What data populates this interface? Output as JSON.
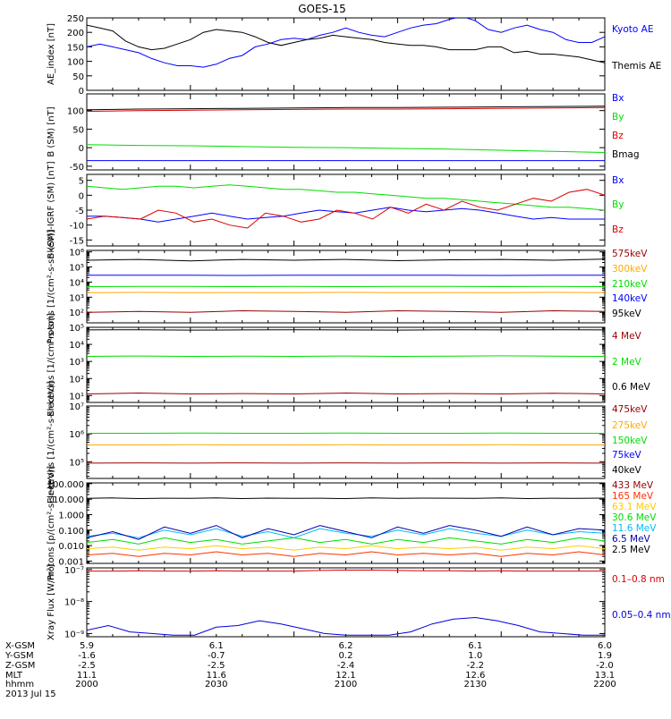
{
  "title": "GOES-15",
  "chart_data": [
    {
      "type": "line",
      "ylabel": "AE_index [nT]",
      "yscale": "linear",
      "ylim": [
        0,
        250
      ],
      "ticks": [
        {
          "v": 0,
          "label": "0"
        },
        {
          "v": 50,
          "label": "50"
        },
        {
          "v": 100,
          "label": "100"
        },
        {
          "v": 150,
          "label": "150"
        },
        {
          "v": 200,
          "label": "200"
        },
        {
          "v": 250,
          "label": "250"
        }
      ],
      "series": [
        {
          "name": "Kyoto AE",
          "color": "#0000ff",
          "values": [
            150,
            160,
            150,
            140,
            130,
            110,
            95,
            85,
            85,
            80,
            90,
            110,
            120,
            150,
            160,
            175,
            180,
            175,
            190,
            200,
            215,
            200,
            190,
            185,
            200,
            215,
            225,
            230,
            245,
            255,
            240,
            210,
            200,
            215,
            225,
            210,
            200,
            175,
            165,
            165,
            185
          ]
        },
        {
          "name": "Themis AE",
          "color": "#000000",
          "values": [
            225,
            215,
            205,
            170,
            150,
            140,
            145,
            160,
            175,
            200,
            210,
            205,
            200,
            185,
            165,
            155,
            165,
            175,
            180,
            190,
            185,
            180,
            175,
            165,
            160,
            155,
            155,
            150,
            140,
            140,
            140,
            150,
            150,
            130,
            135,
            125,
            125,
            120,
            115,
            105,
            95
          ]
        }
      ]
    },
    {
      "type": "line",
      "ylabel": "B (SM) [nT]",
      "yscale": "linear",
      "ylim": [
        -60,
        145
      ],
      "ticks": [
        {
          "v": -50,
          "label": "-50"
        },
        {
          "v": 0,
          "label": "0"
        },
        {
          "v": 50,
          "label": "50"
        },
        {
          "v": 100,
          "label": "100"
        },
        {
          "v": 150,
          "label": "150"
        }
      ],
      "series": [
        {
          "name": "Bx",
          "color": "#0000ff",
          "values": [
            -35,
            -35,
            -35,
            -35,
            -35,
            -35,
            -35,
            -35,
            -35,
            -35,
            -35
          ]
        },
        {
          "name": "By",
          "color": "#00dd00",
          "values": [
            8,
            6,
            5,
            3,
            1,
            0,
            -2,
            -4,
            -7,
            -10,
            -13
          ]
        },
        {
          "name": "Bz",
          "color": "#dd0000",
          "values": [
            98,
            100,
            101,
            102,
            103,
            104,
            104,
            105,
            106,
            107,
            108
          ]
        },
        {
          "name": "Bmag",
          "color": "#000000",
          "values": [
            102,
            104,
            105,
            106,
            107,
            108,
            108,
            109,
            110,
            111,
            112
          ]
        }
      ]
    },
    {
      "type": "line",
      "ylabel": "B (SM)-IGRF (SM) [nT]",
      "yscale": "linear",
      "ylim": [
        -17,
        7
      ],
      "ticks": [
        {
          "v": -15,
          "label": "-15"
        },
        {
          "v": -10,
          "label": "-10"
        },
        {
          "v": -5,
          "label": "-5"
        },
        {
          "v": 0,
          "label": "0"
        },
        {
          "v": 5,
          "label": "5"
        }
      ],
      "series": [
        {
          "name": "Bx",
          "color": "#0000ff",
          "values": [
            -7,
            -7,
            -7.5,
            -8,
            -9,
            -8,
            -7,
            -6,
            -7,
            -8,
            -7.5,
            -7,
            -6,
            -5,
            -5.5,
            -6,
            -5,
            -4,
            -5,
            -5.5,
            -5,
            -4.5,
            -5,
            -6,
            -7,
            -8,
            -7.5,
            -8,
            -8,
            -8
          ]
        },
        {
          "name": "By",
          "color": "#00dd00",
          "values": [
            3,
            2.5,
            2,
            2.5,
            3,
            3,
            2.5,
            3,
            3.5,
            3,
            2.5,
            2,
            2,
            1.5,
            1,
            1,
            0.5,
            0,
            -0.5,
            -1,
            -1,
            -1.5,
            -2,
            -2.5,
            -3,
            -3.5,
            -4,
            -4,
            -4.5,
            -5
          ]
        },
        {
          "name": "Bz",
          "color": "#dd0000",
          "values": [
            -8,
            -7,
            -7.5,
            -8,
            -5,
            -6,
            -9,
            -8,
            -10,
            -11,
            -6,
            -7,
            -9,
            -8,
            -5,
            -6,
            -8,
            -4,
            -6,
            -3,
            -5,
            -2,
            -4,
            -5,
            -3,
            -1,
            -2,
            1,
            2,
            0
          ]
        }
      ]
    },
    {
      "type": "line",
      "ylabel": "Protons [1/(cm²-s-sr-keV)]",
      "yscale": "log",
      "ylim": [
        1.3,
        6.1
      ],
      "ticks": [
        {
          "v": 2,
          "label": "10²"
        },
        {
          "v": 3,
          "label": "10³"
        },
        {
          "v": 4,
          "label": "10⁴"
        },
        {
          "v": 5,
          "label": "10⁵"
        },
        {
          "v": 6,
          "label": "10⁶"
        }
      ],
      "series": [
        {
          "name": "575keV",
          "color": "#990000",
          "values": [
            2.0,
            2.05,
            2.0,
            2.1,
            2.05,
            2.0,
            2.1,
            2.05,
            2.0,
            2.1,
            2.05
          ]
        },
        {
          "name": "300keV",
          "color": "#ffaa00",
          "values": [
            3.3,
            3.32,
            3.3,
            3.31,
            3.3,
            3.32,
            3.3,
            3.31,
            3.3,
            3.32,
            3.3
          ]
        },
        {
          "name": "210keV",
          "color": "#00dd00",
          "values": [
            3.7,
            3.72,
            3.71,
            3.7,
            3.72,
            3.7,
            3.71,
            3.72,
            3.7,
            3.71,
            3.7
          ]
        },
        {
          "name": "140keV",
          "color": "#0000ff",
          "values": [
            4.45,
            4.46,
            4.45,
            4.44,
            4.46,
            4.45,
            4.46,
            4.45,
            4.44,
            4.46,
            4.45
          ]
        },
        {
          "name": "95keV",
          "color": "#000000",
          "values": [
            5.45,
            5.5,
            5.4,
            5.5,
            5.45,
            5.5,
            5.42,
            5.48,
            5.5,
            5.45,
            5.52
          ]
        }
      ]
    },
    {
      "type": "line",
      "ylabel": "Electrons [1/(cm²-s-sr)]",
      "yscale": "log",
      "ylim": [
        0.6,
        5.0
      ],
      "ticks": [
        {
          "v": 1,
          "label": "10¹"
        },
        {
          "v": 2,
          "label": "10²"
        },
        {
          "v": 3,
          "label": "10³"
        },
        {
          "v": 4,
          "label": "10⁴"
        },
        {
          "v": 5,
          "label": "10⁵"
        }
      ],
      "series": [
        {
          "name": "4 MeV",
          "color": "#990000",
          "values": [
            1.1,
            1.15,
            1.1,
            1.12,
            1.1,
            1.15,
            1.1,
            1.12,
            1.1,
            1.14,
            1.1
          ]
        },
        {
          "name": "2 MeV",
          "color": "#00dd00",
          "values": [
            3.3,
            3.32,
            3.3,
            3.31,
            3.3,
            3.32,
            3.3,
            3.31,
            3.33,
            3.31,
            3.3
          ]
        },
        {
          "name": "0.6 MeV",
          "color": "#000000",
          "values": [
            4.85,
            4.86,
            4.84,
            4.85,
            4.86,
            4.85,
            4.84,
            4.86,
            4.85,
            4.86,
            4.85
          ]
        }
      ]
    },
    {
      "type": "line",
      "ylabel": "Electrons [1/(cm²-s-sr-keV)]",
      "yscale": "log",
      "ylim": [
        4.4,
        7.0
      ],
      "ticks": [
        {
          "v": 5,
          "label": "10⁵"
        },
        {
          "v": 6,
          "label": "10⁶"
        },
        {
          "v": 7,
          "label": "10⁷"
        }
      ],
      "series": [
        {
          "name": "475keV",
          "color": "#990000",
          "values": [
            4.95,
            4.96,
            4.95,
            4.96,
            4.95,
            4.96,
            4.95,
            4.96,
            4.95,
            4.96,
            4.95
          ]
        },
        {
          "name": "275keV",
          "color": "#ffaa00",
          "values": [
            5.6,
            5.6,
            5.61,
            5.6,
            5.6,
            5.61,
            5.6,
            5.6,
            5.61,
            5.6,
            5.6
          ]
        },
        {
          "name": "150keV",
          "color": "#00dd00",
          "values": [
            6.02,
            6.02,
            6.03,
            6.02,
            6.02,
            6.03,
            6.02,
            6.02,
            6.03,
            6.02,
            6.02
          ]
        },
        {
          "name": "75keV",
          "color": "#0000ff",
          "values": []
        },
        {
          "name": "40keV",
          "color": "#000000",
          "values": []
        }
      ]
    },
    {
      "type": "line",
      "ylabel": "Protons [p/(cm²-s-sr-keV)]",
      "yscale": "log",
      "ylim": [
        -3.15,
        2.05
      ],
      "ticks": [
        {
          "v": -3,
          "label": "0.001"
        },
        {
          "v": -2,
          "label": "0.010"
        },
        {
          "v": -1,
          "label": "0.100"
        },
        {
          "v": 0,
          "label": "1.000"
        },
        {
          "v": 1,
          "label": "10.000"
        },
        {
          "v": 2,
          "label": "100.000"
        }
      ],
      "series": [
        {
          "name": "433 MeV",
          "color": "#990000",
          "values": []
        },
        {
          "name": "165 MeV",
          "color": "#ff3300",
          "values": [
            -2.6,
            -2.5,
            -2.7,
            -2.5,
            -2.6,
            -2.4,
            -2.6,
            -2.5,
            -2.7,
            -2.5,
            -2.6,
            -2.4,
            -2.6,
            -2.5,
            -2.6,
            -2.5,
            -2.7,
            -2.5,
            -2.6,
            -2.4,
            -2.6
          ]
        },
        {
          "name": "63.1 MeV",
          "color": "#ffcc00",
          "values": [
            -2.2,
            -2.1,
            -2.3,
            -2.1,
            -2.2,
            -2.0,
            -2.2,
            -2.1,
            -2.3,
            -2.1,
            -2.2,
            -2.0,
            -2.2,
            -2.1,
            -2.2,
            -2.1,
            -2.3,
            -2.1,
            -2.2,
            -2.0,
            -2.2
          ]
        },
        {
          "name": "30.6 MeV",
          "color": "#00dd00",
          "values": [
            -1.8,
            -1.6,
            -1.9,
            -1.5,
            -1.8,
            -1.6,
            -1.9,
            -1.7,
            -1.5,
            -1.8,
            -1.6,
            -1.9,
            -1.6,
            -1.8,
            -1.5,
            -1.7,
            -1.9,
            -1.6,
            -1.8,
            -1.5,
            -1.7
          ]
        },
        {
          "name": "11.6 MeV",
          "color": "#00bbff",
          "values": [
            -1.4,
            -1.2,
            -1.5,
            -1.0,
            -1.3,
            -0.9,
            -1.4,
            -1.1,
            -1.5,
            -0.9,
            -1.2,
            -1.4,
            -1.0,
            -1.3,
            -0.9,
            -1.2,
            -1.4,
            -1.0,
            -1.3,
            -1.1,
            -1.2
          ]
        },
        {
          "name": "6.5 MeV",
          "color": "#0000aa",
          "values": [
            -1.5,
            -1.1,
            -1.6,
            -0.8,
            -1.2,
            -0.7,
            -1.5,
            -0.9,
            -1.3,
            -0.7,
            -1.1,
            -1.5,
            -0.8,
            -1.2,
            -0.7,
            -1.0,
            -1.4,
            -0.8,
            -1.3,
            -0.9,
            -1.0
          ]
        },
        {
          "name": "2.5 MeV",
          "color": "#000000",
          "values": [
            1.05,
            1.08,
            1.04,
            1.06,
            1.05,
            1.08,
            1.04,
            1.07,
            1.05,
            1.06,
            1.04,
            1.08,
            1.05,
            1.07,
            1.06,
            1.05,
            1.08,
            1.04,
            1.06,
            1.05,
            1.07
          ]
        }
      ]
    },
    {
      "type": "line",
      "ylabel": "Xray Flux [W/m²]",
      "yscale": "log",
      "ylim": [
        -9.1,
        -6.95
      ],
      "ticks": [
        {
          "v": -9,
          "label": "10⁻⁹"
        },
        {
          "v": -8,
          "label": "10⁻⁸"
        },
        {
          "v": -7,
          "label": "10⁻⁷"
        }
      ],
      "series": [
        {
          "name": "0.1–0.8 nm",
          "color": "#dd0000",
          "values": [
            -7.05,
            -7.05,
            -7.04,
            -7.05,
            -7.05,
            -7.04,
            -7.05,
            -7.05,
            -7.05,
            -7.03,
            -7.02,
            -7.02,
            -7.03,
            -7.04,
            -7.04,
            -7.05,
            -7.04,
            -7.05,
            -7.05,
            -7.05,
            -7.05
          ]
        },
        {
          "name": "0.05–0.4 nm",
          "color": "#0000dd",
          "values": [
            -8.9,
            -8.75,
            -8.95,
            -9.0,
            -9.05,
            -9.05,
            -8.8,
            -8.75,
            -8.6,
            -8.7,
            -8.85,
            -9.0,
            -9.05,
            -9.05,
            -9.05,
            -8.95,
            -8.7,
            -8.55,
            -8.5,
            -8.6,
            -8.75,
            -8.95,
            -9.0,
            -9.05,
            -9.05
          ]
        }
      ]
    }
  ],
  "legend_labels": [
    [
      "Kyoto AE",
      "Themis AE"
    ],
    [
      "Bx",
      "By",
      "Bz",
      "Bmag"
    ],
    [
      "Bx",
      "By",
      "Bz"
    ],
    [
      "575keV",
      "300keV",
      "210keV",
      "140keV",
      "95keV"
    ],
    [
      "4 MeV",
      "2 MeV",
      "0.6 MeV"
    ],
    [
      "475keV",
      "275keV",
      "150keV",
      "75keV",
      "40keV"
    ],
    [
      "433 MeV",
      "165 MeV",
      "63.1 MeV",
      "30.6 MeV",
      "11.6 MeV",
      "6.5 MeV",
      "2.5 MeV"
    ],
    [
      "0.1–0.8 nm",
      "0.05–0.4 nm"
    ]
  ],
  "legend_colors": [
    [
      "#0000ff",
      "#000000"
    ],
    [
      "#0000ff",
      "#00dd00",
      "#dd0000",
      "#000000"
    ],
    [
      "#0000ff",
      "#00dd00",
      "#dd0000"
    ],
    [
      "#990000",
      "#ffaa00",
      "#00dd00",
      "#0000ff",
      "#000000"
    ],
    [
      "#990000",
      "#00dd00",
      "#000000"
    ],
    [
      "#990000",
      "#ffaa00",
      "#00dd00",
      "#0000ff",
      "#000000"
    ],
    [
      "#990000",
      "#ff3300",
      "#ffcc00",
      "#00dd00",
      "#00bbff",
      "#0000aa",
      "#000000"
    ],
    [
      "#dd0000",
      "#0000dd"
    ]
  ],
  "orbit_table": {
    "row_labels": [
      "X-GSM",
      "Y-GSM",
      "Z-GSM",
      "MLT",
      "hhmm"
    ],
    "columns": [
      [
        "5.9",
        "-1.6",
        "-2.5",
        "11.1",
        "2000"
      ],
      [
        "6.1",
        "-0.7",
        "-2.5",
        "11.6",
        "2030"
      ],
      [
        "6.2",
        "0.2",
        "-2.4",
        "12.1",
        "2100"
      ],
      [
        "6.1",
        "1.0",
        "-2.2",
        "12.6",
        "2130"
      ],
      [
        "6.0",
        "1.9",
        "-2.0",
        "13.1",
        "2200"
      ]
    ],
    "date": "2013 Jul 15"
  }
}
